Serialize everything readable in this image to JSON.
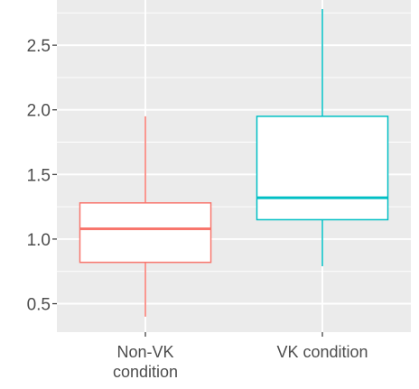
{
  "chart_data": {
    "type": "boxplot",
    "title": "",
    "xlabel": "",
    "ylabel": "",
    "categories": [
      "Non-VK condition",
      "VK condition"
    ],
    "category_tick_lines": [
      [
        "Non-VK",
        "condition"
      ],
      [
        "VK condition"
      ]
    ],
    "ylim": [
      0.28,
      2.85
    ],
    "yticks": [
      0.5,
      1.0,
      1.5,
      2.0,
      2.5
    ],
    "ytick_labels": [
      "0.5",
      "1.0",
      "1.5",
      "2.0",
      "2.5"
    ],
    "grid": true,
    "legend": "none",
    "series": [
      {
        "category": "Non-VK condition",
        "color": "#F8766D",
        "min": 0.4,
        "q1": 0.82,
        "median": 1.08,
        "q3": 1.28,
        "max": 1.95
      },
      {
        "category": "VK condition",
        "color": "#00BFC4",
        "min": 0.79,
        "q1": 1.15,
        "median": 1.32,
        "q3": 1.95,
        "max": 2.78
      }
    ],
    "colors": {
      "panel": "#EBEBEB",
      "grid": "#FFFFFF",
      "tick_text": "#4D4D4D",
      "tick_mark": "#333333"
    }
  }
}
